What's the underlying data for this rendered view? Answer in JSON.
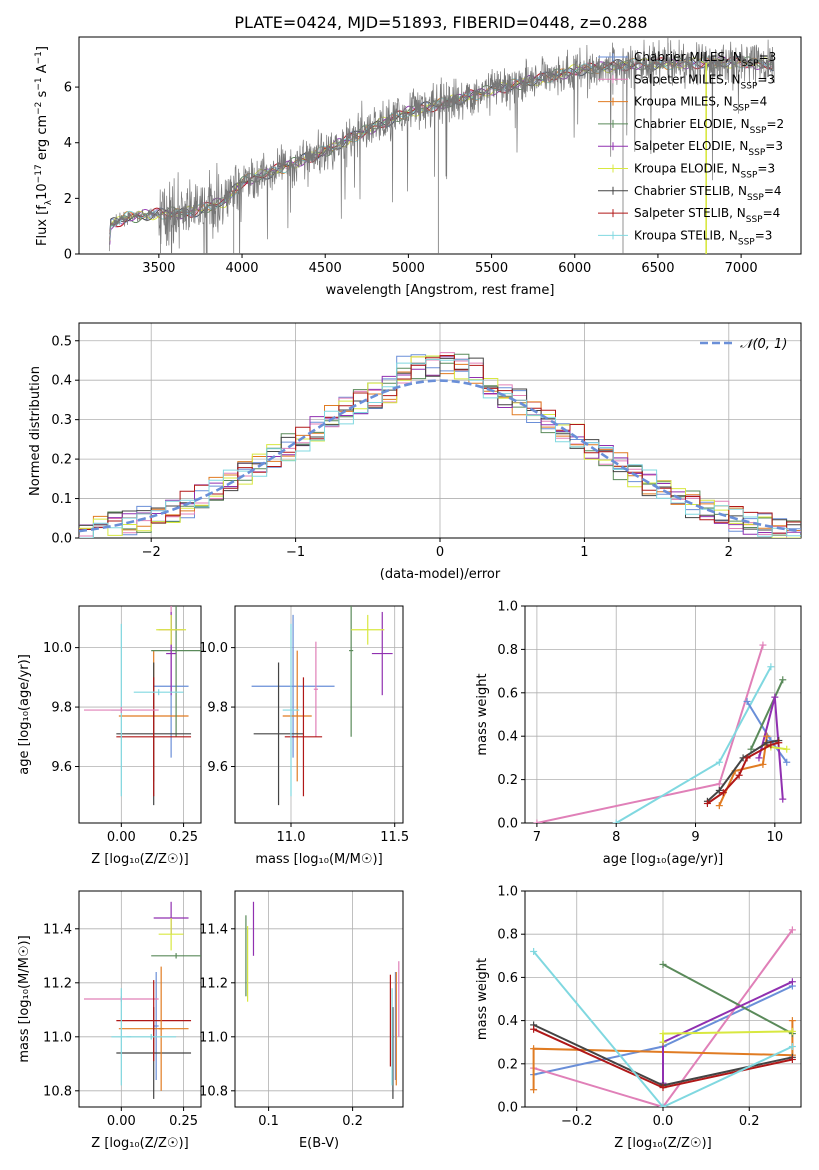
{
  "page": {
    "title": "PLATE=0424, MJD=51893, FIBERID=0448, z=0.288"
  },
  "colors": {
    "Chabrier MILES": "#6a8fd8",
    "Salpeter MILES": "#e080b8",
    "Kroupa MILES": "#e07b22",
    "Chabrier ELODIE": "#5a8a5a",
    "Salpeter ELODIE": "#9030b0",
    "Kroupa ELODIE": "#d8e840",
    "Chabrier STELIB": "#444444",
    "Salpeter STELIB": "#b01818",
    "Kroupa STELIB": "#80d8e0"
  },
  "chart_data": [
    {
      "id": "spectrum",
      "type": "line",
      "xlabel": "wavelength [Angstrom, rest frame]",
      "ylabel_parts": {
        "pre": "Flux [f",
        "sub1": "λ",
        "mid": "10",
        "sup1": "−17",
        "post": " erg cm",
        "sup2": "−2",
        "post2": " s",
        "sup3": "−1",
        "post3": " A",
        "sup4": "−1",
        "end": "]"
      },
      "xlim": [
        3020,
        7360
      ],
      "ylim": [
        0,
        7.8
      ],
      "xticks": [
        3500,
        4000,
        4500,
        5000,
        5500,
        6000,
        6500,
        7000
      ],
      "yticks": [
        0,
        2,
        4,
        6
      ],
      "legend_placement": "top-right",
      "legend": [
        {
          "label": "Chabrier MILES, N",
          "sub": "SSP",
          "suffix": "=3"
        },
        {
          "label": "Salpeter MILES, N",
          "sub": "SSP",
          "suffix": "=3"
        },
        {
          "label": "Kroupa MILES, N",
          "sub": "SSP",
          "suffix": "=4"
        },
        {
          "label": "Chabrier ELODIE, N",
          "sub": "SSP",
          "suffix": "=2"
        },
        {
          "label": "Salpeter ELODIE, N",
          "sub": "SSP",
          "suffix": "=3"
        },
        {
          "label": "Kroupa ELODIE, N",
          "sub": "SSP",
          "suffix": "=3"
        },
        {
          "label": "Chabrier STELIB, N",
          "sub": "SSP",
          "suffix": "=4"
        },
        {
          "label": "Salpeter STELIB, N",
          "sub": "SSP",
          "suffix": "=4"
        },
        {
          "label": "Kroupa STELIB, N",
          "sub": "SSP",
          "suffix": "=3"
        }
      ],
      "continuum": [
        [
          3200,
          0
        ],
        [
          3210,
          1.05
        ],
        [
          3300,
          1.3
        ],
        [
          3500,
          1.45
        ],
        [
          3700,
          1.5
        ],
        [
          3900,
          1.9
        ],
        [
          4000,
          2.6
        ],
        [
          4200,
          3.0
        ],
        [
          4500,
          3.7
        ],
        [
          4800,
          4.6
        ],
        [
          5000,
          5.1
        ],
        [
          5200,
          5.4
        ],
        [
          5500,
          5.9
        ],
        [
          5800,
          6.3
        ],
        [
          6000,
          6.6
        ],
        [
          6300,
          6.8
        ],
        [
          6600,
          6.85
        ],
        [
          7000,
          6.9
        ],
        [
          7200,
          6.8
        ]
      ]
    },
    {
      "id": "residuals",
      "type": "histogram",
      "xlabel": "(data-model)/error",
      "ylabel": "Normed distribution",
      "xlim": [
        -2.5,
        2.5
      ],
      "ylim": [
        0,
        0.545
      ],
      "xticks": [
        -2,
        -1,
        0,
        1,
        2
      ],
      "yticks": [
        0.0,
        0.1,
        0.2,
        0.3,
        0.4,
        0.5
      ],
      "legend": "𝒩(0, 1)",
      "legend_placement": "top-right"
    },
    {
      "id": "Z_age",
      "type": "errorbar",
      "xlabel": "Z [log₁₀(Z/Z☉)]",
      "ylabel": "age  [log₁₀(age/yr)]",
      "xlim": [
        -0.17,
        0.32
      ],
      "ylim": [
        9.41,
        10.14
      ],
      "xticks": [
        0.0,
        0.25
      ],
      "yticks": [
        9.6,
        9.8,
        10.0
      ],
      "points": [
        {
          "model": "Chabrier MILES",
          "x": 0.2,
          "xe": 0.07,
          "y": 9.87,
          "ye": 0.24
        },
        {
          "model": "Salpeter MILES",
          "x": 0.2,
          "xe": 0.05,
          "y": 10.06,
          "ye": 0.2
        },
        {
          "model": "Kroupa MILES",
          "x": 0.13,
          "xe": 0.14,
          "y": 9.77,
          "ye": 0.22
        },
        {
          "model": "Chabrier ELODIE",
          "x": 0.22,
          "xe": 0.1,
          "y": 9.99,
          "ye": 0.29
        },
        {
          "model": "Salpeter ELODIE",
          "x": 0.2,
          "xe": 0.02,
          "y": 9.98,
          "ye": 0.14
        },
        {
          "model": "Kroupa ELODIE",
          "x": 0.2,
          "xe": 0.06,
          "y": 10.06,
          "ye": 0.05
        },
        {
          "model": "Chabrier STELIB",
          "x": 0.13,
          "xe": 0.15,
          "y": 9.71,
          "ye": 0.24
        },
        {
          "model": "Salpeter STELIB",
          "x": 0.13,
          "xe": 0.15,
          "y": 9.7,
          "ye": 0.2
        },
        {
          "model": "Kroupa STELIB",
          "x": 0.0,
          "xe": 0.04,
          "y": 9.79,
          "ye": 0.29
        },
        {
          "model": "Salpeter MILES",
          "x": 0.0,
          "xe": 0.15,
          "y": 9.79,
          "ye": 0.01
        },
        {
          "model": "Kroupa STELIB",
          "x": 0.15,
          "xe": 0.1,
          "y": 9.85,
          "ye": 0.01
        }
      ]
    },
    {
      "id": "mass_age",
      "type": "errorbar",
      "xlabel": "mass [log₁₀(M/M☉)]",
      "ylabel": "",
      "xlim": [
        10.73,
        11.54
      ],
      "ylim": [
        9.41,
        10.14
      ],
      "xticks": [
        11.0,
        11.5
      ],
      "yticks": [
        9.6,
        9.8,
        10.0
      ],
      "points": [
        {
          "model": "Chabrier MILES",
          "x": 11.01,
          "xe": 0.2,
          "y": 9.87,
          "ye": 0.24
        },
        {
          "model": "Salpeter MILES",
          "x": 11.12,
          "xe": 0.01,
          "y": 9.86,
          "ye": 0.16
        },
        {
          "model": "Kroupa MILES",
          "x": 11.03,
          "xe": 0.07,
          "y": 9.77,
          "ye": 0.22
        },
        {
          "model": "Chabrier ELODIE",
          "x": 11.29,
          "xe": 0.01,
          "y": 9.99,
          "ye": 0.29
        },
        {
          "model": "Salpeter ELODIE",
          "x": 11.44,
          "xe": 0.05,
          "y": 9.98,
          "ye": 0.14
        },
        {
          "model": "Kroupa ELODIE",
          "x": 11.37,
          "xe": 0.08,
          "y": 10.06,
          "ye": 0.05
        },
        {
          "model": "Chabrier STELIB",
          "x": 10.94,
          "xe": 0.12,
          "y": 9.71,
          "ye": 0.24
        },
        {
          "model": "Salpeter STELIB",
          "x": 11.06,
          "xe": 0.09,
          "y": 9.7,
          "ye": 0.2
        },
        {
          "model": "Kroupa STELIB",
          "x": 11.0,
          "xe": 0.04,
          "y": 9.79,
          "ye": 0.29
        }
      ]
    },
    {
      "id": "age_massweight",
      "type": "line",
      "xlabel": "age  [log₁₀(age/yr)]",
      "ylabel": "mass weight",
      "xlim": [
        6.85,
        10.33
      ],
      "ylim": [
        0,
        1.0
      ],
      "xticks": [
        7,
        8,
        9,
        10
      ],
      "yticks": [
        0.0,
        0.2,
        0.4,
        0.6,
        0.8,
        1.0
      ],
      "series": [
        {
          "model": "Salpeter MILES",
          "x": [
            7.0,
            9.3,
            9.85
          ],
          "y": [
            0.0,
            0.18,
            0.82
          ]
        },
        {
          "model": "Kroupa STELIB",
          "x": [
            8.0,
            9.3,
            9.95
          ],
          "y": [
            0.0,
            0.28,
            0.72
          ]
        },
        {
          "model": "Chabrier MILES",
          "x": [
            9.65,
            9.95,
            10.15
          ],
          "y": [
            0.56,
            0.38,
            0.28
          ]
        },
        {
          "model": "Chabrier ELODIE",
          "x": [
            9.7,
            10.1
          ],
          "y": [
            0.34,
            0.66
          ]
        },
        {
          "model": "Salpeter ELODIE",
          "x": [
            9.8,
            10.0,
            10.1
          ],
          "y": [
            0.3,
            0.58,
            0.11
          ]
        },
        {
          "model": "Kroupa ELODIE",
          "x": [
            9.95,
            10.15
          ],
          "y": [
            0.35,
            0.34
          ]
        },
        {
          "model": "Kroupa MILES",
          "x": [
            9.3,
            9.5,
            9.85,
            9.9
          ],
          "y": [
            0.08,
            0.24,
            0.27,
            0.4
          ]
        },
        {
          "model": "Chabrier STELIB",
          "x": [
            9.15,
            9.3,
            9.6,
            9.9,
            10.05
          ],
          "y": [
            0.1,
            0.15,
            0.3,
            0.37,
            0.38
          ]
        },
        {
          "model": "Salpeter STELIB",
          "x": [
            9.15,
            9.35,
            9.55,
            9.65,
            9.95,
            10.05
          ],
          "y": [
            0.09,
            0.14,
            0.22,
            0.3,
            0.36,
            0.37
          ]
        }
      ]
    },
    {
      "id": "Z_mass",
      "type": "errorbar",
      "xlabel": "Z [log₁₀(Z/Z☉)]",
      "ylabel": "mass [log₁₀(M/M☉)]",
      "xlim": [
        -0.17,
        0.32
      ],
      "ylim": [
        10.74,
        11.54
      ],
      "xticks": [
        0.0,
        0.25
      ],
      "yticks": [
        10.8,
        11.0,
        11.2,
        11.4
      ],
      "points": [
        {
          "model": "Chabrier MILES",
          "x": 0.14,
          "xe": 0.01,
          "y": 11.04,
          "ye": 0.2
        },
        {
          "model": "Salpeter MILES",
          "x": 0.0,
          "xe": 0.15,
          "y": 11.14,
          "ye": 0.01
        },
        {
          "model": "Kroupa MILES",
          "x": 0.13,
          "xe": 0.14,
          "y": 11.03,
          "ye": 0.01
        },
        {
          "model": "Chabrier ELODIE",
          "x": 0.22,
          "xe": 0.1,
          "y": 11.3,
          "ye": 0.01
        },
        {
          "model": "Salpeter ELODIE",
          "x": 0.2,
          "xe": 0.07,
          "y": 11.44,
          "ye": 0.06
        },
        {
          "model": "Kroupa ELODIE",
          "x": 0.2,
          "xe": 0.05,
          "y": 11.38,
          "ye": 0.06
        },
        {
          "model": "Chabrier STELIB",
          "x": 0.13,
          "xe": 0.15,
          "y": 10.94,
          "ye": 0.17
        },
        {
          "model": "Salpeter STELIB",
          "x": 0.13,
          "xe": 0.15,
          "y": 11.06,
          "ye": 0.15
        },
        {
          "model": "Kroupa STELIB",
          "x": 0.0,
          "xe": 0.04,
          "y": 11.0,
          "ye": 0.18
        },
        {
          "model": "Kroupa MILES",
          "x": 0.16,
          "xe": 0.01,
          "y": 11.03,
          "ye": 0.23
        },
        {
          "model": "Kroupa STELIB",
          "x": 0.12,
          "xe": 0.1,
          "y": 11.0,
          "ye": 0.01
        }
      ]
    },
    {
      "id": "ebv_mass",
      "type": "errorbar",
      "xlabel": "E(B-V)",
      "ylabel": "",
      "xlim": [
        0.06,
        0.26
      ],
      "ylim": [
        10.74,
        11.54
      ],
      "xticks": [
        0.1,
        0.2
      ],
      "yticks": [
        10.8,
        11.0,
        11.2,
        11.4
      ],
      "points": [
        {
          "model": "Chabrier MILES",
          "x": 0.251,
          "y": 11.04,
          "ye": 0.2
        },
        {
          "model": "Salpeter MILES",
          "x": 0.255,
          "y": 11.14,
          "ye": 0.14
        },
        {
          "model": "Kroupa MILES",
          "x": 0.252,
          "y": 11.03,
          "ye": 0.21
        },
        {
          "model": "Chabrier ELODIE",
          "x": 0.073,
          "y": 11.3,
          "ye": 0.15
        },
        {
          "model": "Salpeter ELODIE",
          "x": 0.082,
          "y": 11.4,
          "ye": 0.1
        },
        {
          "model": "Kroupa ELODIE",
          "x": 0.075,
          "y": 11.27,
          "ye": 0.14
        },
        {
          "model": "Chabrier STELIB",
          "x": 0.248,
          "y": 10.94,
          "ye": 0.17
        },
        {
          "model": "Salpeter STELIB",
          "x": 0.245,
          "y": 11.06,
          "ye": 0.17
        },
        {
          "model": "Kroupa STELIB",
          "x": 0.247,
          "y": 11.0,
          "ye": 0.18
        }
      ]
    },
    {
      "id": "Z_massweight",
      "type": "line",
      "xlabel": "Z [log₁₀(Z/Z☉)]",
      "ylabel": "mass weight",
      "xlim": [
        -0.32,
        0.32
      ],
      "ylim": [
        0,
        1.0
      ],
      "xticks": [
        -0.2,
        0.0,
        0.2
      ],
      "yticks": [
        0.0,
        0.2,
        0.4,
        0.6,
        0.8,
        1.0
      ],
      "series": [
        {
          "model": "Chabrier MILES",
          "x": [
            -0.3,
            0.0,
            0.3
          ],
          "y": [
            0.15,
            0.28,
            0.56
          ]
        },
        {
          "model": "Salpeter MILES",
          "x": [
            -0.3,
            0.0,
            0.3
          ],
          "y": [
            0.18,
            0.0,
            0.82
          ]
        },
        {
          "model": "Kroupa MILES",
          "x": [
            -0.3,
            -0.3,
            0.3,
            0.3
          ],
          "y": [
            0.08,
            0.27,
            0.24,
            0.4
          ]
        },
        {
          "model": "Chabrier ELODIE",
          "x": [
            0.0,
            0.3
          ],
          "y": [
            0.66,
            0.34
          ]
        },
        {
          "model": "Salpeter ELODIE",
          "x": [
            0.0,
            0.0,
            0.3
          ],
          "y": [
            0.11,
            0.3,
            0.58
          ]
        },
        {
          "model": "Kroupa ELODIE",
          "x": [
            0.0,
            0.0,
            0.3
          ],
          "y": [
            0.3,
            0.34,
            0.35
          ]
        },
        {
          "model": "Chabrier STELIB",
          "x": [
            -0.3,
            0.0,
            0.3
          ],
          "y": [
            0.38,
            0.1,
            0.23
          ]
        },
        {
          "model": "Salpeter STELIB",
          "x": [
            -0.3,
            0.0,
            0.3
          ],
          "y": [
            0.36,
            0.09,
            0.22
          ]
        },
        {
          "model": "Kroupa STELIB",
          "x": [
            -0.3,
            0.0,
            0.3
          ],
          "y": [
            0.72,
            0.0,
            0.28
          ]
        }
      ]
    }
  ]
}
